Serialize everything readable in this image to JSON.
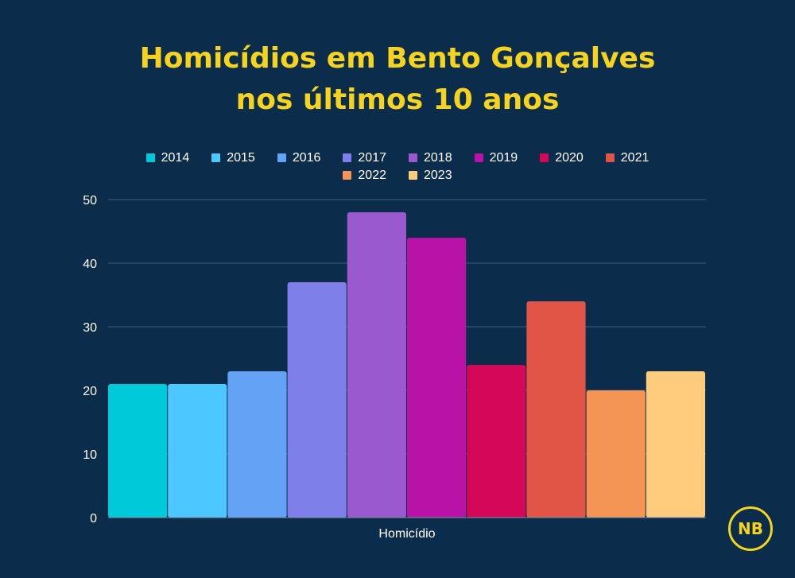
{
  "logo_text": "NB",
  "chart_data": {
    "type": "bar",
    "title_lines": [
      "Homicídios em Bento Gonçalves",
      "nos últimos 10 anos"
    ],
    "xlabel": "Homicídio",
    "ylabel": "",
    "categories": [
      "Homicídio"
    ],
    "series": [
      {
        "name": "2014",
        "values": [
          21
        ],
        "color": "#00c9d9"
      },
      {
        "name": "2015",
        "values": [
          21
        ],
        "color": "#4cc7ff"
      },
      {
        "name": "2016",
        "values": [
          23
        ],
        "color": "#63a2f5"
      },
      {
        "name": "2017",
        "values": [
          37
        ],
        "color": "#7e7fe8"
      },
      {
        "name": "2018",
        "values": [
          48
        ],
        "color": "#9b59d0"
      },
      {
        "name": "2019",
        "values": [
          44
        ],
        "color": "#b812a7"
      },
      {
        "name": "2020",
        "values": [
          24
        ],
        "color": "#d40759"
      },
      {
        "name": "2021",
        "values": [
          34
        ],
        "color": "#e05546"
      },
      {
        "name": "2022",
        "values": [
          20
        ],
        "color": "#f49555"
      },
      {
        "name": "2023",
        "values": [
          23
        ],
        "color": "#ffcc7e"
      }
    ],
    "ylim": [
      0,
      50
    ],
    "yticks": [
      "0",
      "10",
      "20",
      "30",
      "40",
      "50"
    ],
    "grid": true,
    "legend_position": "top"
  },
  "colors": {
    "background": "#0b2d4b",
    "title": "#f6d31e",
    "text": "#ffffff",
    "gridline": "#3d5c7a"
  }
}
